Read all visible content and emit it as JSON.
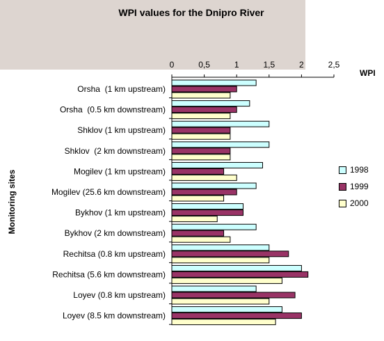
{
  "chart_data": {
    "type": "bar",
    "orientation": "horizontal",
    "title": "WPI values for the Dnipro River",
    "xlabel": "WPI",
    "ylabel": "Monitoring sites",
    "xlim": [
      0,
      2.5
    ],
    "xticks": [
      0,
      0.5,
      1,
      1.5,
      2,
      2.5
    ],
    "xtick_labels": [
      "0",
      "0,5",
      "1",
      "1,5",
      "2",
      "2,5"
    ],
    "categories": [
      "Orsha  (1 km upstream)",
      "Orsha  (0.5 km downstream)",
      "Shklov (1 km upstream)",
      "Shklov  (2 km downstream)",
      "Mogilev (1 km upstream)",
      "Mogilev (25.6 km downstream)",
      "Bykhov (1 km upstream)",
      "Bykhov (2 km downstream)",
      "Rechitsa (0.8 km upstream)",
      "Rechitsa (5.6 km downstream)",
      "Loyev (0.8 km upstream)",
      "Loyev (8.5 km downstream)"
    ],
    "series": [
      {
        "name": "1998",
        "color": "#ccffff",
        "values": [
          1.3,
          1.2,
          1.5,
          1.5,
          1.4,
          1.3,
          1.1,
          1.3,
          1.5,
          2.0,
          1.3,
          1.7
        ]
      },
      {
        "name": "1999",
        "color": "#993366",
        "values": [
          1.0,
          1.0,
          0.9,
          0.9,
          0.8,
          1.0,
          1.1,
          0.8,
          1.8,
          2.1,
          1.9,
          2.0
        ]
      },
      {
        "name": "2000",
        "color": "#ffffcc",
        "values": [
          0.9,
          0.9,
          0.9,
          0.9,
          1.0,
          0.8,
          0.7,
          0.9,
          1.5,
          1.7,
          1.5,
          1.6
        ]
      }
    ],
    "grid": false,
    "legend_position": "right"
  }
}
